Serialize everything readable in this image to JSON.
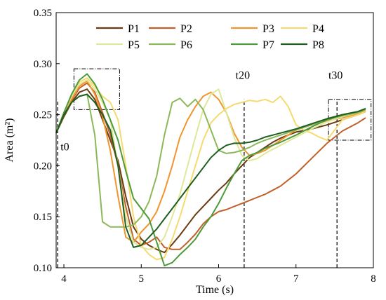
{
  "chart_data": {
    "type": "line",
    "xlabel": "Time (s)",
    "ylabel": "Area (m²)",
    "xlim": [
      3.9,
      8.0
    ],
    "ylim": [
      0.1,
      0.35
    ],
    "xticks": [
      4,
      5,
      6,
      7,
      8
    ],
    "yticks": [
      0.1,
      0.15,
      0.2,
      0.25,
      0.3,
      0.35
    ],
    "xtick_labels": [
      "4",
      "5",
      "6",
      "7",
      "8"
    ],
    "ytick_labels": [
      "0.10",
      "0.15",
      "0.20",
      "0.25",
      "0.30",
      "0.35"
    ],
    "legend_position": "top",
    "annotations": [
      {
        "text": "t0",
        "x": 3.92,
        "y": 0.215
      },
      {
        "text": "t20",
        "x": 6.33,
        "y": 0.285
      },
      {
        "text": "t30",
        "x": 7.53,
        "y": 0.285
      }
    ],
    "vlines": [
      3.92,
      6.33,
      7.53
    ],
    "boxes": [
      {
        "x0": 4.13,
        "x1": 4.72,
        "y0": 0.255,
        "y1": 0.295
      },
      {
        "x0": 7.42,
        "x1": 7.97,
        "y0": 0.225,
        "y1": 0.265
      }
    ],
    "series": [
      {
        "name": "P1",
        "color": "#6b3a10",
        "x": [
          3.9,
          4.0,
          4.1,
          4.2,
          4.3,
          4.4,
          4.5,
          4.6,
          4.7,
          4.8,
          4.9,
          5.0,
          5.1,
          5.2,
          5.3,
          5.4,
          5.5,
          5.6,
          5.7,
          5.8,
          5.9,
          6.0,
          6.1,
          6.2,
          6.3,
          6.4,
          6.5,
          6.6,
          6.7,
          6.8,
          6.9,
          7.0,
          7.2,
          7.4,
          7.6,
          7.8,
          7.9
        ],
        "y": [
          0.232,
          0.248,
          0.262,
          0.272,
          0.275,
          0.265,
          0.245,
          0.225,
          0.205,
          0.17,
          0.14,
          0.128,
          0.122,
          0.118,
          0.115,
          0.123,
          0.132,
          0.142,
          0.152,
          0.16,
          0.168,
          0.176,
          0.183,
          0.192,
          0.2,
          0.208,
          0.213,
          0.218,
          0.223,
          0.227,
          0.23,
          0.233,
          0.236,
          0.24,
          0.245,
          0.25,
          0.253
        ]
      },
      {
        "name": "P2",
        "color": "#c0602a",
        "x": [
          3.9,
          4.0,
          4.1,
          4.2,
          4.3,
          4.4,
          4.5,
          4.6,
          4.7,
          4.8,
          4.9,
          5.0,
          5.1,
          5.2,
          5.3,
          5.4,
          5.5,
          5.6,
          5.7,
          5.8,
          5.9,
          6.0,
          6.1,
          6.2,
          6.3,
          6.4,
          6.5,
          6.6,
          6.8,
          7.0,
          7.2,
          7.4,
          7.6,
          7.8,
          7.9
        ],
        "y": [
          0.232,
          0.25,
          0.264,
          0.276,
          0.281,
          0.272,
          0.252,
          0.23,
          0.2,
          0.16,
          0.128,
          0.122,
          0.125,
          0.13,
          0.12,
          0.118,
          0.118,
          0.125,
          0.133,
          0.143,
          0.15,
          0.155,
          0.157,
          0.16,
          0.163,
          0.166,
          0.169,
          0.172,
          0.18,
          0.192,
          0.207,
          0.222,
          0.234,
          0.242,
          0.247
        ]
      },
      {
        "name": "P3",
        "color": "#f0952e",
        "x": [
          3.9,
          4.0,
          4.1,
          4.2,
          4.3,
          4.4,
          4.5,
          4.6,
          4.7,
          4.8,
          4.9,
          5.0,
          5.1,
          5.2,
          5.3,
          5.4,
          5.5,
          5.6,
          5.7,
          5.8,
          5.9,
          6.0,
          6.1,
          6.2,
          6.3,
          6.4,
          6.5,
          6.6,
          6.7,
          6.8,
          6.9,
          7.0,
          7.2,
          7.4,
          7.6,
          7.8,
          7.9
        ],
        "y": [
          0.232,
          0.25,
          0.265,
          0.278,
          0.283,
          0.27,
          0.248,
          0.215,
          0.17,
          0.13,
          0.125,
          0.135,
          0.143,
          0.155,
          0.175,
          0.2,
          0.228,
          0.245,
          0.258,
          0.268,
          0.272,
          0.265,
          0.252,
          0.232,
          0.218,
          0.21,
          0.212,
          0.215,
          0.22,
          0.225,
          0.23,
          0.235,
          0.24,
          0.244,
          0.247,
          0.251,
          0.254
        ]
      },
      {
        "name": "P4",
        "color": "#f5da70",
        "x": [
          3.9,
          4.0,
          4.1,
          4.2,
          4.3,
          4.4,
          4.5,
          4.6,
          4.7,
          4.8,
          4.9,
          5.0,
          5.1,
          5.2,
          5.3,
          5.4,
          5.5,
          5.6,
          5.7,
          5.8,
          5.9,
          6.0,
          6.1,
          6.2,
          6.3,
          6.4,
          6.5,
          6.6,
          6.7,
          6.8,
          6.9,
          7.0,
          7.1,
          7.2,
          7.3,
          7.4,
          7.5,
          7.6,
          7.8,
          7.9
        ],
        "y": [
          0.232,
          0.252,
          0.268,
          0.282,
          0.286,
          0.278,
          0.268,
          0.262,
          0.245,
          0.2,
          0.15,
          0.122,
          0.113,
          0.108,
          0.11,
          0.128,
          0.15,
          0.175,
          0.2,
          0.225,
          0.242,
          0.25,
          0.256,
          0.26,
          0.262,
          0.264,
          0.263,
          0.265,
          0.262,
          0.268,
          0.258,
          0.24,
          0.235,
          0.232,
          0.228,
          0.225,
          0.235,
          0.245,
          0.25,
          0.253
        ]
      },
      {
        "name": "P5",
        "color": "#dfe89a",
        "x": [
          3.9,
          4.0,
          4.1,
          4.2,
          4.3,
          4.4,
          4.5,
          4.6,
          4.7,
          4.8,
          4.9,
          5.0,
          5.1,
          5.2,
          5.3,
          5.4,
          5.5,
          5.6,
          5.7,
          5.8,
          5.9,
          6.0,
          6.1,
          6.2,
          6.3,
          6.4,
          6.5,
          6.6,
          6.8,
          7.0,
          7.2,
          7.4,
          7.6,
          7.8,
          7.9
        ],
        "y": [
          0.232,
          0.252,
          0.268,
          0.28,
          0.284,
          0.275,
          0.262,
          0.245,
          0.2,
          0.15,
          0.125,
          0.12,
          0.118,
          0.12,
          0.13,
          0.15,
          0.172,
          0.2,
          0.228,
          0.255,
          0.27,
          0.275,
          0.252,
          0.228,
          0.21,
          0.205,
          0.207,
          0.212,
          0.22,
          0.228,
          0.236,
          0.243,
          0.248,
          0.252,
          0.255
        ]
      },
      {
        "name": "P6",
        "color": "#8db85a",
        "x": [
          3.9,
          4.0,
          4.1,
          4.2,
          4.3,
          4.4,
          4.5,
          4.6,
          4.7,
          4.8,
          4.9,
          5.0,
          5.1,
          5.2,
          5.3,
          5.4,
          5.5,
          5.6,
          5.7,
          5.8,
          5.9,
          6.0,
          6.1,
          6.2,
          6.3,
          6.4,
          6.5,
          6.6,
          6.8,
          7.0,
          7.2,
          7.4,
          7.6,
          7.8,
          7.9
        ],
        "y": [
          0.232,
          0.25,
          0.262,
          0.268,
          0.27,
          0.23,
          0.145,
          0.14,
          0.14,
          0.14,
          0.142,
          0.15,
          0.165,
          0.19,
          0.23,
          0.262,
          0.266,
          0.258,
          0.265,
          0.255,
          0.235,
          0.215,
          0.212,
          0.213,
          0.215,
          0.218,
          0.222,
          0.225,
          0.23,
          0.235,
          0.24,
          0.245,
          0.249,
          0.252,
          0.255
        ]
      },
      {
        "name": "P7",
        "color": "#4e9a3a",
        "x": [
          3.9,
          4.0,
          4.1,
          4.2,
          4.3,
          4.4,
          4.5,
          4.6,
          4.7,
          4.8,
          4.9,
          5.0,
          5.1,
          5.2,
          5.3,
          5.4,
          5.5,
          5.6,
          5.7,
          5.8,
          5.9,
          6.0,
          6.1,
          6.2,
          6.3,
          6.4,
          6.5,
          6.6,
          6.8,
          7.0,
          7.2,
          7.4,
          7.6,
          7.8,
          7.9
        ],
        "y": [
          0.232,
          0.252,
          0.27,
          0.284,
          0.29,
          0.28,
          0.265,
          0.245,
          0.225,
          0.195,
          0.168,
          0.158,
          0.148,
          0.125,
          0.102,
          0.105,
          0.113,
          0.12,
          0.128,
          0.14,
          0.15,
          0.163,
          0.178,
          0.192,
          0.205,
          0.21,
          0.213,
          0.217,
          0.223,
          0.23,
          0.238,
          0.245,
          0.25,
          0.253,
          0.256
        ]
      },
      {
        "name": "P8",
        "color": "#1f5e1f",
        "x": [
          3.9,
          4.0,
          4.1,
          4.2,
          4.3,
          4.4,
          4.5,
          4.6,
          4.7,
          4.8,
          4.9,
          5.0,
          5.1,
          5.2,
          5.3,
          5.4,
          5.5,
          5.6,
          5.7,
          5.8,
          5.9,
          6.0,
          6.1,
          6.2,
          6.3,
          6.4,
          6.5,
          6.6,
          6.8,
          7.0,
          7.2,
          7.4,
          7.6,
          7.8,
          7.9
        ],
        "y": [
          0.232,
          0.25,
          0.262,
          0.268,
          0.27,
          0.262,
          0.25,
          0.235,
          0.2,
          0.14,
          0.12,
          0.122,
          0.13,
          0.138,
          0.148,
          0.158,
          0.168,
          0.178,
          0.188,
          0.198,
          0.208,
          0.215,
          0.22,
          0.222,
          0.222,
          0.223,
          0.225,
          0.228,
          0.232,
          0.236,
          0.241,
          0.246,
          0.25,
          0.253,
          0.256
        ]
      }
    ]
  }
}
